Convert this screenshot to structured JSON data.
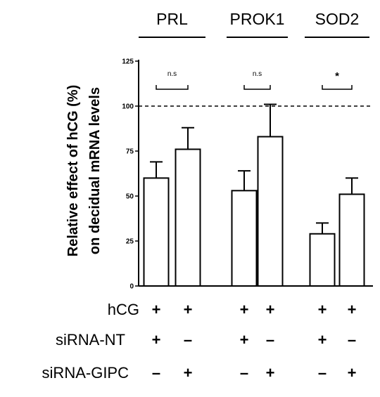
{
  "chart_data": {
    "type": "bar",
    "title": "",
    "xlabel": "",
    "ylabel": "Relative effect of hCG (%) on decidual mRNA levels",
    "ylabel_lines": [
      "Relative effect of hCG (%)",
      "on decidual mRNA levels"
    ],
    "ylim": [
      0,
      125
    ],
    "yticks": [
      0,
      25,
      50,
      75,
      100,
      125
    ],
    "reference_line": {
      "y": 100,
      "style": "dashed"
    },
    "grid": false,
    "groups": [
      {
        "label": "PRL",
        "bars": [
          {
            "value": 60,
            "error": 9
          },
          {
            "value": 76,
            "error": 12
          }
        ],
        "significance": "n.s"
      },
      {
        "label": "PROK1",
        "bars": [
          {
            "value": 53,
            "error": 11
          },
          {
            "value": 83,
            "error": 18
          }
        ],
        "significance": "n.s"
      },
      {
        "label": "SOD2",
        "bars": [
          {
            "value": 29,
            "error": 6
          },
          {
            "value": 51,
            "error": 9
          }
        ],
        "significance": "*"
      }
    ],
    "condition_table": {
      "rows": [
        {
          "label": "hCG",
          "values": [
            "+",
            "+",
            "+",
            "+",
            "+",
            "+"
          ]
        },
        {
          "label": "siRNA-NT",
          "values": [
            "+",
            "–",
            "+",
            "–",
            "+",
            "–"
          ]
        },
        {
          "label": "siRNA-GIPC",
          "values": [
            "–",
            "+",
            "–",
            "+",
            "–",
            "+"
          ]
        }
      ]
    },
    "colors": {
      "bar_fill": "#ffffff",
      "stroke": "#000000"
    }
  }
}
